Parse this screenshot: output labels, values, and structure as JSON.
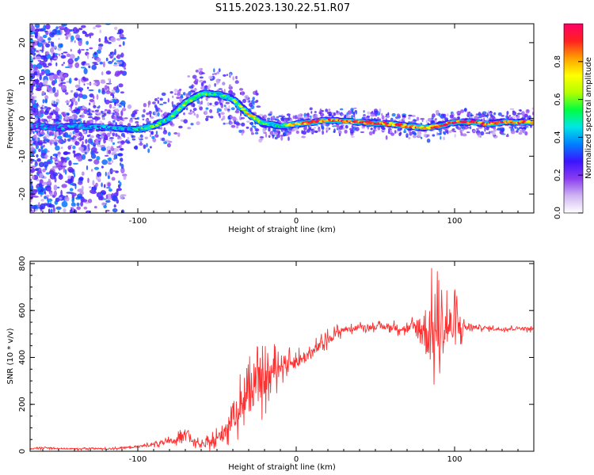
{
  "title": "S115.2023.130.22.51.R07",
  "chart_data": [
    {
      "type": "heatmap",
      "xlabel": "Height of straight line (km)",
      "ylabel": "Frequency (Hz)",
      "xlim": [
        -168,
        150
      ],
      "ylim": [
        -25,
        25
      ],
      "x_ticks": [
        -100,
        0,
        100
      ],
      "y_ticks": [
        -20,
        -10,
        0,
        10,
        20
      ],
      "colorbar": {
        "label": "Normalized spectral amplitude",
        "range": [
          0.0,
          1.0
        ],
        "ticks": [
          0.0,
          0.2,
          0.4,
          0.6,
          0.8
        ],
        "colors": [
          "#ffffff",
          "#cfb4f2",
          "#8a3cf0",
          "#3c14ff",
          "#0080ff",
          "#00e6e6",
          "#00ff40",
          "#b4ff00",
          "#ffff00",
          "#ffa000",
          "#ff2020",
          "#ff0066"
        ]
      },
      "ridge": {
        "x": [
          -168,
          -150,
          -140,
          -120,
          -100,
          -90,
          -80,
          -70,
          -60,
          -50,
          -40,
          -30,
          -20,
          -10,
          0,
          20,
          40,
          60,
          80,
          90,
          100,
          110,
          120,
          130,
          150
        ],
        "freq": [
          -2,
          -2.5,
          -2,
          -2.5,
          -3,
          -2,
          0,
          4,
          6.5,
          6.5,
          5,
          1,
          -1.5,
          -2,
          -1.5,
          -0.5,
          -1,
          -1.5,
          -2.5,
          -2,
          -1,
          -1,
          -1.5,
          -1,
          -1
        ],
        "amplitude": [
          0.3,
          0.35,
          0.3,
          0.35,
          0.45,
          0.5,
          0.5,
          0.6,
          0.55,
          0.5,
          0.5,
          0.75,
          0.55,
          0.5,
          0.85,
          0.9,
          0.85,
          0.85,
          0.8,
          0.85,
          0.9,
          0.9,
          0.85,
          0.9,
          0.85
        ]
      }
    },
    {
      "type": "line",
      "xlabel": "Height of straight line (km)",
      "ylabel": "SNR (10 * v/v)",
      "xlim": [
        -168,
        150
      ],
      "ylim": [
        0,
        810
      ],
      "x_ticks": [
        -100,
        0,
        100
      ],
      "y_ticks": [
        0,
        200,
        400,
        600,
        800
      ],
      "color": "#ff3030",
      "series": [
        {
          "x": [
            -168,
            -160,
            -150,
            -140,
            -130,
            -120,
            -110,
            -100,
            -90,
            -85,
            -80,
            -75,
            -70,
            -65,
            -60,
            -55,
            -50,
            -45,
            -40,
            -35,
            -30,
            -25,
            -20,
            -15,
            -10,
            -5,
            0,
            5,
            10,
            15,
            20,
            25,
            30,
            35,
            40,
            50,
            60,
            70,
            75,
            80,
            85,
            90,
            95,
            100,
            110,
            120,
            130,
            140,
            150
          ],
          "y": [
            10,
            15,
            12,
            10,
            12,
            10,
            14,
            20,
            30,
            35,
            40,
            50,
            90,
            40,
            25,
            35,
            50,
            90,
            150,
            200,
            250,
            280,
            300,
            340,
            370,
            380,
            380,
            400,
            420,
            450,
            480,
            500,
            520,
            520,
            530,
            530,
            530,
            520,
            530,
            520,
            500,
            520,
            530,
            530,
            530,
            525,
            520,
            525,
            520
          ],
          "spread": [
            4,
            5,
            4,
            4,
            5,
            4,
            5,
            6,
            12,
            15,
            18,
            20,
            30,
            20,
            15,
            25,
            40,
            60,
            80,
            100,
            110,
            110,
            100,
            80,
            60,
            40,
            40,
            40,
            35,
            30,
            30,
            25,
            20,
            15,
            15,
            15,
            20,
            25,
            40,
            140,
            180,
            170,
            150,
            120,
            15,
            10,
            10,
            10,
            10
          ]
        }
      ]
    }
  ]
}
